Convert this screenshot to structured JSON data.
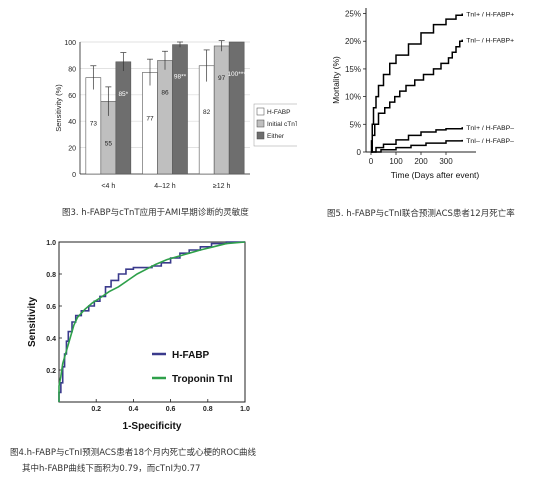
{
  "colors": {
    "h_fabp": "#ffffff",
    "ctnt": "#bfbfbf",
    "either": "#6e6e6e",
    "roc_hfabp": "#3a3a8c",
    "roc_tni": "#2ea04a",
    "curve": "#000000"
  },
  "captions": {
    "fig3": "图3. h-FABP与cTnT应用于AMI早期诊断的灵敏度",
    "fig5": "图5. h-FABP与cTnI联合预测ACS患者12月死亡率",
    "fig4_line1": "图4.h-FABP与cTnI预测ACS患者18个月内死亡或心梗的ROC曲线",
    "fig4_line2": "其中h-FABP曲线下面积为0.79，而cTnI为0.77"
  },
  "chart_data": [
    {
      "id": "fig3",
      "type": "bar",
      "ylabel": "Sensitivity (%)",
      "ylim": [
        0,
        100
      ],
      "yticks": [
        0,
        20,
        40,
        60,
        80,
        100
      ],
      "categories": [
        "<4 h",
        "4–12 h",
        "≥12 h"
      ],
      "series": [
        {
          "name": "H-FABP",
          "values": [
            73,
            77,
            82
          ],
          "errors": [
            9,
            10,
            12
          ],
          "labels": [
            "73",
            "77",
            "82"
          ]
        },
        {
          "name": "Initial cTnT",
          "values": [
            55,
            86,
            97
          ],
          "errors": [
            11,
            7,
            4
          ],
          "labels": [
            "55",
            "86",
            "97"
          ]
        },
        {
          "name": "Either",
          "values": [
            85,
            98,
            100
          ],
          "errors": [
            7,
            2,
            0
          ],
          "labels": [
            "85*",
            "98**",
            "100***"
          ]
        }
      ],
      "legend": "right"
    },
    {
      "id": "fig5",
      "type": "line",
      "xlabel": "Time (Days after event)",
      "ylabel": "Mortality (%)",
      "xlim": [
        -20,
        420
      ],
      "ylim": [
        0,
        26
      ],
      "xticks": [
        0,
        100,
        200,
        300
      ],
      "yticks": [
        0,
        5,
        10,
        15,
        20,
        25
      ],
      "ytick_labels": [
        "0",
        "5%",
        "10%",
        "15%",
        "20%",
        "25%"
      ],
      "series": [
        {
          "name": "TnI+ / H-FABP+",
          "points": [
            [
              0,
              0
            ],
            [
              2,
              2
            ],
            [
              5,
              5
            ],
            [
              10,
              8
            ],
            [
              20,
              10
            ],
            [
              30,
              12
            ],
            [
              50,
              14
            ],
            [
              75,
              16
            ],
            [
              100,
              17.5
            ],
            [
              150,
              19.5
            ],
            [
              200,
              21.5
            ],
            [
              250,
              23
            ],
            [
              300,
              24
            ],
            [
              340,
              24.7
            ],
            [
              365,
              25
            ]
          ]
        },
        {
          "name": "TnI– / H-FABP+",
          "points": [
            [
              0,
              0
            ],
            [
              5,
              3
            ],
            [
              15,
              5
            ],
            [
              30,
              7
            ],
            [
              55,
              8
            ],
            [
              75,
              9
            ],
            [
              95,
              10
            ],
            [
              115,
              11
            ],
            [
              140,
              12
            ],
            [
              175,
              13
            ],
            [
              210,
              14
            ],
            [
              250,
              15
            ],
            [
              280,
              16
            ],
            [
              310,
              17
            ],
            [
              325,
              18
            ],
            [
              340,
              19
            ],
            [
              355,
              20
            ],
            [
              365,
              20.3
            ]
          ]
        },
        {
          "name": "TnI+ / H-FABP–",
          "points": [
            [
              0,
              0
            ],
            [
              20,
              0.8
            ],
            [
              50,
              1.4
            ],
            [
              100,
              2.2
            ],
            [
              150,
              3
            ],
            [
              200,
              3.6
            ],
            [
              260,
              4
            ],
            [
              300,
              4.2
            ],
            [
              365,
              4.5
            ]
          ]
        },
        {
          "name": "TnI– / H-FABP–",
          "points": [
            [
              0,
              0
            ],
            [
              40,
              0.4
            ],
            [
              100,
              0.8
            ],
            [
              160,
              1.2
            ],
            [
              220,
              1.6
            ],
            [
              300,
              2
            ],
            [
              365,
              2.2
            ]
          ]
        }
      ]
    },
    {
      "id": "fig4",
      "type": "line",
      "xlabel": "1-Specificity",
      "ylabel": "Sensitivity",
      "xlim": [
        0,
        1
      ],
      "ylim": [
        0,
        1
      ],
      "xticks": [
        0.2,
        0.4,
        0.6,
        0.8,
        1.0
      ],
      "xtick_labels": [
        "0.2",
        "0.4",
        "0.6",
        "0.8",
        "1.0"
      ],
      "yticks": [
        0.2,
        0.4,
        0.6,
        0.8,
        1.0
      ],
      "ytick_labels": [
        "0.2",
        "0.4",
        "0.6",
        "0.8",
        "1.0"
      ],
      "series": [
        {
          "name": "H-FABP",
          "color_key": "roc_hfabp",
          "points": [
            [
              0,
              0
            ],
            [
              0,
              0.06
            ],
            [
              0.01,
              0.12
            ],
            [
              0.02,
              0.22
            ],
            [
              0.03,
              0.3
            ],
            [
              0.04,
              0.38
            ],
            [
              0.05,
              0.44
            ],
            [
              0.07,
              0.5
            ],
            [
              0.09,
              0.54
            ],
            [
              0.12,
              0.57
            ],
            [
              0.16,
              0.6
            ],
            [
              0.19,
              0.63
            ],
            [
              0.22,
              0.66
            ],
            [
              0.25,
              0.72
            ],
            [
              0.28,
              0.76
            ],
            [
              0.32,
              0.8
            ],
            [
              0.36,
              0.83
            ],
            [
              0.4,
              0.84
            ],
            [
              0.45,
              0.84
            ],
            [
              0.5,
              0.85
            ],
            [
              0.55,
              0.87
            ],
            [
              0.6,
              0.9
            ],
            [
              0.65,
              0.93
            ],
            [
              0.7,
              0.95
            ],
            [
              0.76,
              0.97
            ],
            [
              0.82,
              0.99
            ],
            [
              0.9,
              1.0
            ],
            [
              1.0,
              1.0
            ]
          ]
        },
        {
          "name": "Troponin TnI",
          "color_key": "roc_tni",
          "points": [
            [
              0,
              0
            ],
            [
              0,
              0.1
            ],
            [
              0.01,
              0.16
            ],
            [
              0.02,
              0.24
            ],
            [
              0.04,
              0.32
            ],
            [
              0.06,
              0.4
            ],
            [
              0.08,
              0.48
            ],
            [
              0.1,
              0.53
            ],
            [
              0.14,
              0.58
            ],
            [
              0.18,
              0.62
            ],
            [
              0.22,
              0.65
            ],
            [
              0.27,
              0.69
            ],
            [
              0.32,
              0.72
            ],
            [
              0.37,
              0.76
            ],
            [
              0.42,
              0.8
            ],
            [
              0.47,
              0.83
            ],
            [
              0.52,
              0.86
            ],
            [
              0.58,
              0.89
            ],
            [
              0.64,
              0.91
            ],
            [
              0.7,
              0.93
            ],
            [
              0.76,
              0.95
            ],
            [
              0.83,
              0.97
            ],
            [
              0.9,
              0.99
            ],
            [
              1.0,
              1.0
            ]
          ]
        }
      ],
      "legend": "bottom-right"
    }
  ]
}
